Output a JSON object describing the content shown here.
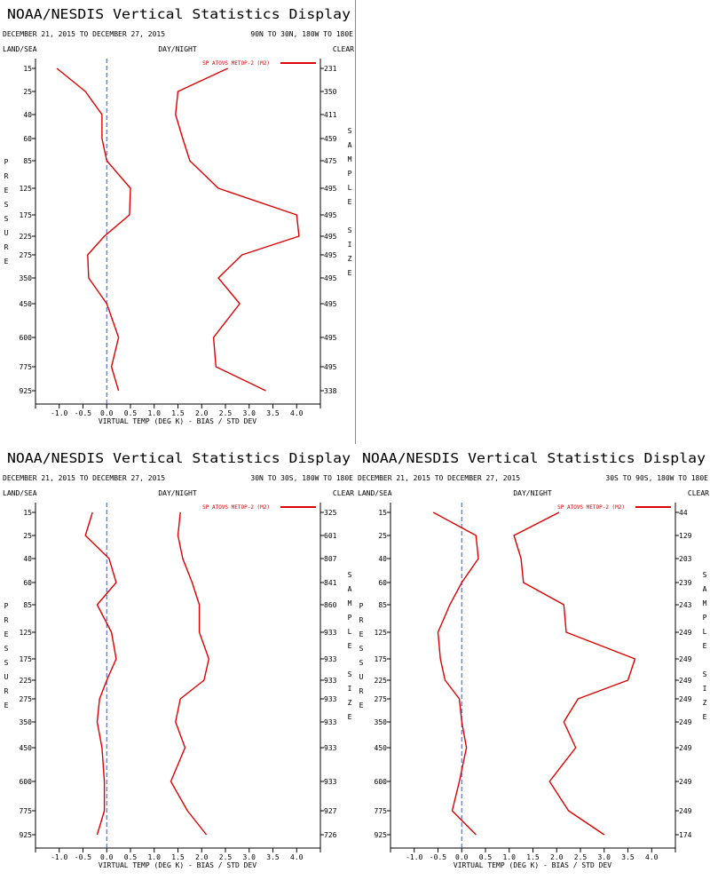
{
  "chart_data": [
    {
      "type": "line",
      "title": "NOAA/NESDIS Vertical Statistics Display",
      "date_range": "DECEMBER 21, 2015 TO DECEMBER 27, 2015",
      "region": "90N TO 30N, 180W TO 180E",
      "header_left": "LAND/SEA",
      "header_center": "DAY/NIGHT",
      "header_right": "CLEAR",
      "legend": "SP ATOVS METOP-2 (M2)",
      "xlabel": "VIRTUAL TEMP (DEG K) - BIAS / STD DEV",
      "ylabel": "PRESSURE",
      "y2label": "SAMPLE SIZE",
      "xlim": [
        -1.5,
        4.5
      ],
      "x_ticks": [
        "-1.0",
        "-0.5",
        "0.0",
        "0.5",
        "1.0",
        "1.5",
        "2.0",
        "2.5",
        "3.0",
        "3.5",
        "4.0"
      ],
      "pressure_levels": [
        "15",
        "25",
        "40",
        "60",
        "85",
        "125",
        "175",
        "225",
        "275",
        "350",
        "450",
        "600",
        "775",
        "925"
      ],
      "sample_size": [
        "231",
        "350",
        "411",
        "459",
        "475",
        "495",
        "495",
        "495",
        "495",
        "495",
        "495",
        "495",
        "495",
        "338"
      ],
      "series": [
        {
          "values": [
            -1.05,
            -0.45,
            -0.1,
            -0.1,
            0.0,
            0.5,
            0.48,
            -0.05,
            -0.4,
            -0.38,
            0.0,
            0.25,
            0.1,
            0.25
          ]
        },
        {
          "values": [
            2.55,
            1.5,
            1.45,
            1.6,
            1.75,
            2.35,
            4.0,
            4.05,
            2.85,
            2.35,
            2.8,
            2.25,
            2.3,
            3.35
          ]
        }
      ],
      "color": "#dd0000"
    },
    {
      "type": "line",
      "title": "NOAA/NESDIS Vertical Statistics Display",
      "date_range": "DECEMBER 21, 2015 TO DECEMBER 27, 2015",
      "region": "30N TO 30S, 180W TO 180E",
      "header_left": "LAND/SEA",
      "header_center": "DAY/NIGHT",
      "header_right": "CLEAR",
      "legend": "SP ATOVS METOP-2 (M2)",
      "xlabel": "VIRTUAL TEMP (DEG K) - BIAS / STD DEV",
      "ylabel": "PRESSURE",
      "y2label": "SAMPLE SIZE",
      "xlim": [
        -1.5,
        4.5
      ],
      "x_ticks": [
        "-1.0",
        "-0.5",
        "0.0",
        "0.5",
        "1.0",
        "1.5",
        "2.0",
        "2.5",
        "3.0",
        "3.5",
        "4.0"
      ],
      "pressure_levels": [
        "15",
        "25",
        "40",
        "60",
        "85",
        "125",
        "175",
        "225",
        "275",
        "350",
        "450",
        "600",
        "775",
        "925"
      ],
      "sample_size": [
        "325",
        "601",
        "807",
        "841",
        "860",
        "933",
        "933",
        "933",
        "933",
        "933",
        "933",
        "933",
        "927",
        "726"
      ],
      "series": [
        {
          "values": [
            -0.3,
            -0.45,
            0.05,
            0.2,
            -0.2,
            0.1,
            0.2,
            0.0,
            -0.15,
            -0.2,
            -0.1,
            -0.05,
            -0.05,
            -0.2
          ]
        },
        {
          "values": [
            1.55,
            1.5,
            1.6,
            1.8,
            1.95,
            1.95,
            2.15,
            2.05,
            1.55,
            1.45,
            1.65,
            1.35,
            1.7,
            2.1
          ]
        }
      ],
      "color": "#dd0000"
    },
    {
      "type": "line",
      "title": "NOAA/NESDIS Vertical Statistics Display",
      "date_range": "DECEMBER 21, 2015 TO DECEMBER 27, 2015",
      "region": "30S TO 90S, 180W TO 180E",
      "header_left": "LAND/SEA",
      "header_center": "DAY/NIGHT",
      "header_right": "CLEAR",
      "legend": "SP ATOVS METOP-2 (M2)",
      "xlabel": "VIRTUAL TEMP (DEG K) - BIAS / STD DEV",
      "ylabel": "PRESSURE",
      "y2label": "SAMPLE SIZE",
      "xlim": [
        -1.5,
        4.5
      ],
      "x_ticks": [
        "-1.0",
        "-0.5",
        "0.0",
        "0.5",
        "1.0",
        "1.5",
        "2.0",
        "2.5",
        "3.0",
        "3.5",
        "4.0"
      ],
      "pressure_levels": [
        "15",
        "25",
        "40",
        "60",
        "85",
        "125",
        "175",
        "225",
        "275",
        "350",
        "450",
        "600",
        "775",
        "925"
      ],
      "sample_size": [
        "44",
        "129",
        "203",
        "239",
        "243",
        "249",
        "249",
        "249",
        "249",
        "249",
        "249",
        "249",
        "249",
        "174"
      ],
      "series": [
        {
          "values": [
            -0.6,
            0.3,
            0.35,
            0.0,
            -0.25,
            -0.5,
            -0.45,
            -0.35,
            -0.05,
            0.0,
            0.1,
            -0.05,
            -0.2,
            0.3
          ]
        },
        {
          "values": [
            2.05,
            1.1,
            1.25,
            1.3,
            2.15,
            2.2,
            3.65,
            3.5,
            2.45,
            2.15,
            2.4,
            1.85,
            2.25,
            3.0
          ]
        }
      ],
      "color": "#dd0000"
    }
  ]
}
